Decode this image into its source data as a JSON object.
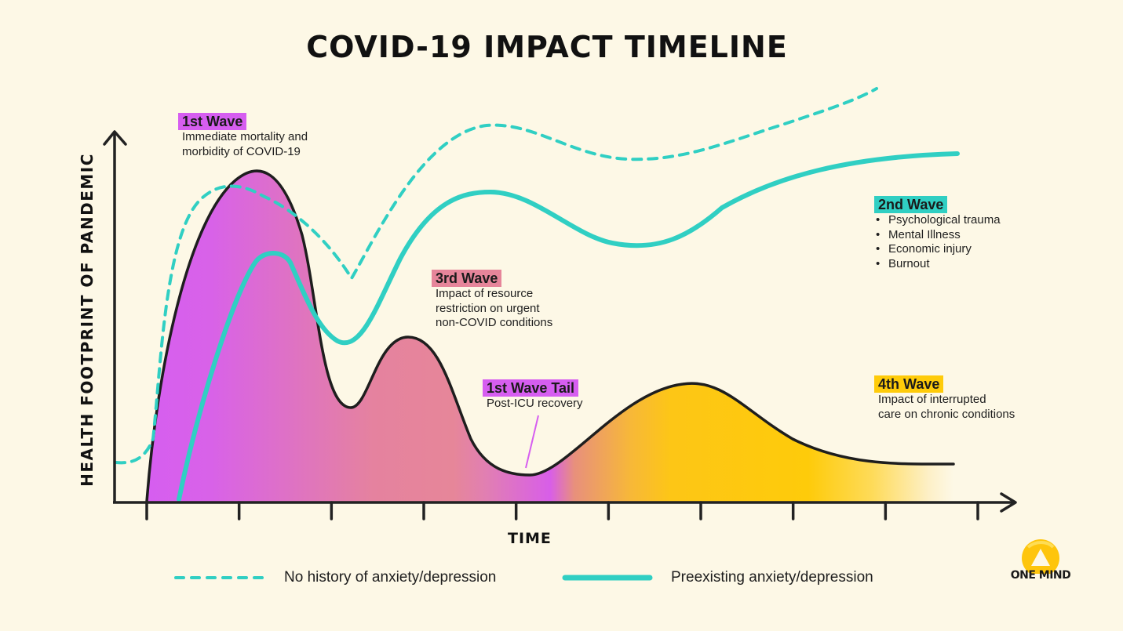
{
  "title": "COVID-19 IMPACT TIMELINE",
  "colors": {
    "background": "#fdf8e6",
    "purple": "#d65ef0",
    "pink": "#e6859a",
    "yellow": "#fecb0a",
    "teal": "#30cfc3",
    "axis": "#222222"
  },
  "chart_data": {
    "type": "area",
    "title": "COVID-19 IMPACT TIMELINE",
    "xlabel": "TIME",
    "ylabel": "HEALTH FOOTPRINT OF PANDEMIC",
    "x_ticks": 10,
    "x_tick_labels": [],
    "y_tick_labels": [],
    "xlim": [
      0,
      10
    ],
    "ylim": [
      0,
      100
    ],
    "grid": false,
    "legend_position": "bottom",
    "series": [
      {
        "name": "Health footprint (waves)",
        "style": "filled-area",
        "x": [
          0,
          0.5,
          1.0,
          1.5,
          2.0,
          2.3,
          2.6,
          3.0,
          3.4,
          3.7,
          4.0,
          4.3,
          4.6,
          5.0,
          5.5,
          6.0,
          6.5,
          7.0,
          7.5,
          8.0,
          8.5,
          9.0,
          9.5
        ],
        "y": [
          0,
          78,
          95,
          85,
          45,
          28,
          45,
          48,
          40,
          20,
          9,
          9,
          18,
          30,
          36,
          36,
          28,
          18,
          13,
          10,
          9,
          9,
          11
        ]
      },
      {
        "name": "No history of anxiety/depression",
        "style": "dashed",
        "x": [
          -0.35,
          -0.1,
          0.1,
          0.3,
          0.6,
          1.0,
          1.5,
          2.0,
          2.3,
          2.6,
          3.0,
          3.5,
          4.0,
          4.5,
          5.0,
          5.5,
          6.0,
          6.5,
          7.0,
          7.5,
          8.0,
          8.2
        ],
        "y": [
          12,
          14,
          55,
          82,
          92,
          92,
          85,
          72,
          68,
          80,
          96,
          112,
          116,
          112,
          106,
          104,
          106,
          111,
          116,
          121,
          128,
          132
        ]
      },
      {
        "name": "Preexisting anxiety/depression",
        "style": "solid",
        "x": [
          0.35,
          0.7,
          1.0,
          1.2,
          1.5,
          1.8,
          2.1,
          2.5,
          3.0,
          3.5,
          4.0,
          4.5,
          5.0,
          5.5,
          6.0,
          6.5,
          7.0,
          7.5,
          8.0,
          8.5,
          9.0,
          9.3
        ],
        "y": [
          0,
          42,
          62,
          74,
          72,
          58,
          48,
          58,
          80,
          91,
          92,
          86,
          80,
          78,
          84,
          93,
          100,
          105,
          107.5,
          109.5,
          110.5,
          111
        ]
      }
    ],
    "annotations": [
      {
        "label": "1st Wave",
        "text": "Immediate mortality and morbidity of COVID-19"
      },
      {
        "label": "2nd Wave",
        "items": [
          "Psychological trauma",
          "Mental Illness",
          "Economic injury",
          "Burnout"
        ]
      },
      {
        "label": "3rd Wave",
        "text": "Impact of resource restriction on urgent non-COVID conditions"
      },
      {
        "label": "1st Wave Tail",
        "text": "Post-ICU recovery"
      },
      {
        "label": "4th Wave",
        "text": "Impact of interrupted care on chronic conditions"
      }
    ]
  },
  "annotations": {
    "wave1": {
      "label": "1st Wave",
      "line1": "Immediate mortality and",
      "line2": "morbidity of COVID-19"
    },
    "wave2": {
      "label": "2nd Wave",
      "items": [
        "Psychological trauma",
        "Mental Illness",
        "Economic injury",
        "Burnout"
      ],
      "bullet": "•"
    },
    "wave3": {
      "label": "3rd Wave",
      "line1": "Impact of resource",
      "line2": "restriction on urgent",
      "line3": "non-COVID conditions"
    },
    "tail": {
      "label": "1st Wave Tail",
      "line1": "Post-ICU recovery"
    },
    "wave4": {
      "label": "4th Wave",
      "line1": "Impact of interrupted",
      "line2": "care on chronic conditions"
    }
  },
  "legend": {
    "dashed_label": "No history of anxiety/depression",
    "solid_label": "Preexisting anxiety/depression"
  },
  "logo": {
    "text": "ONE MIND"
  }
}
